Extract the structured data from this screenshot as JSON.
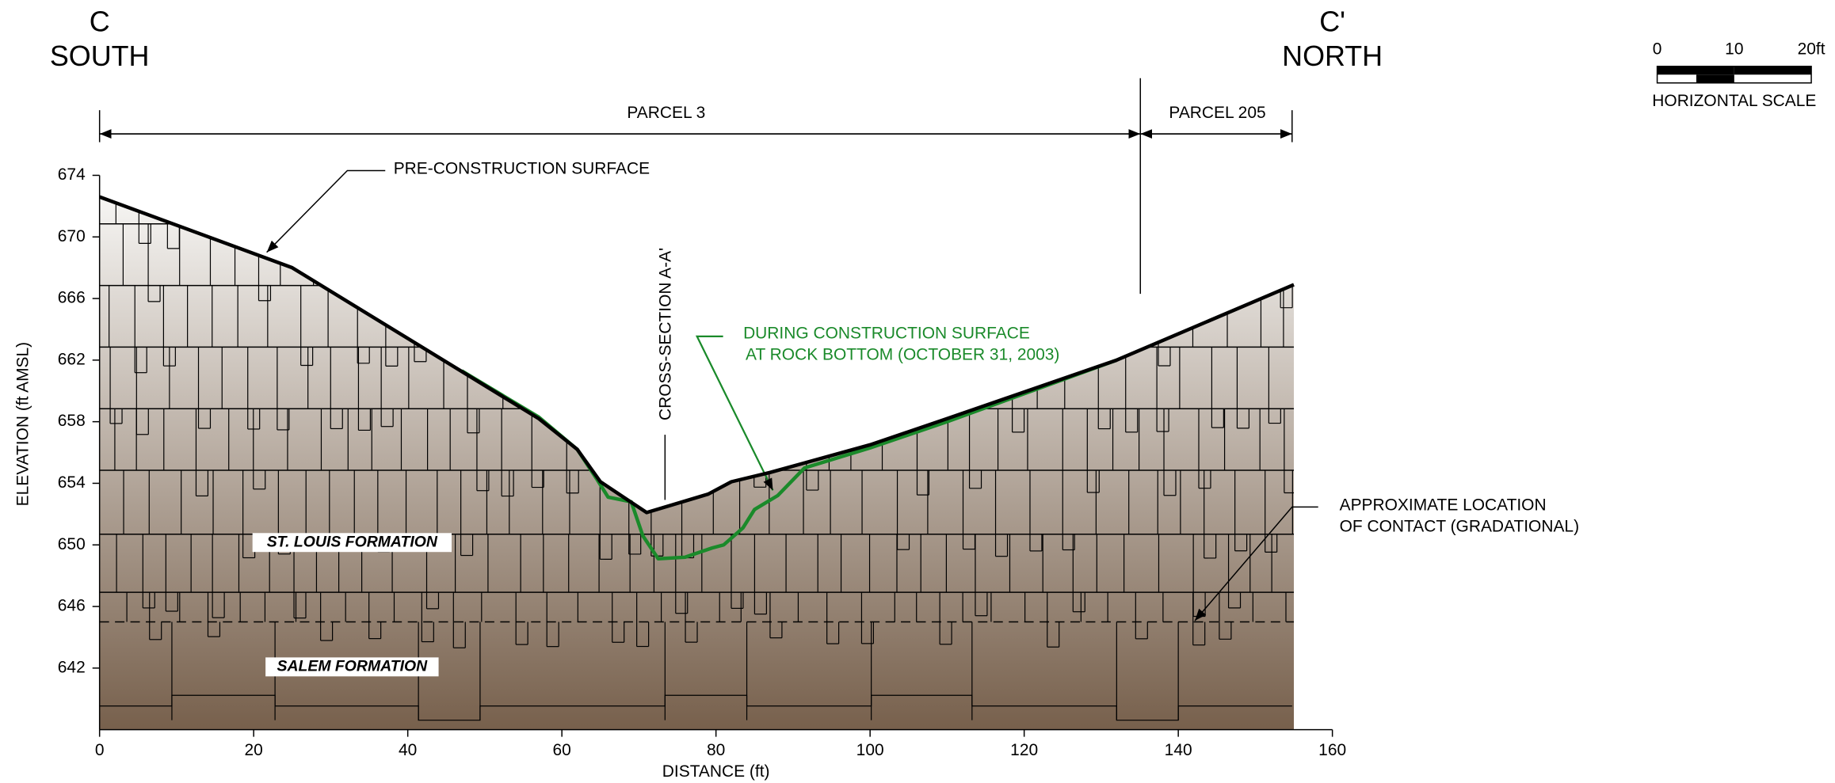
{
  "chart_data": {
    "type": "line",
    "xlabel": "DISTANCE (ft)",
    "ylabel": "ELEVATION (ft AMSL)",
    "xlim": [
      0,
      160
    ],
    "xticks": [
      0,
      20,
      40,
      60,
      80,
      100,
      120,
      140,
      160
    ],
    "ylim": [
      638,
      674
    ],
    "yticks": [
      642,
      646,
      650,
      654,
      658,
      662,
      666,
      670,
      674
    ],
    "series": [
      {
        "name": "PRE-CONSTRUCTION SURFACE",
        "color": "#000000",
        "x": [
          0,
          25,
          57,
          62,
          65,
          71,
          79,
          82,
          87,
          100,
          110,
          132,
          155
        ],
        "values": [
          672.6,
          668,
          658.2,
          656.2,
          654.1,
          652.1,
          653.3,
          654.1,
          654.7,
          656.5,
          658.2,
          662,
          666.9
        ]
      },
      {
        "name": "DURING CONSTRUCTION SURFACE",
        "color": "#1a8a2a",
        "x": [
          47,
          57,
          62,
          64.5,
          66,
          69,
          70.5,
          72.5,
          76,
          79.5,
          81,
          83.5,
          85,
          88,
          91.5,
          100,
          110,
          132
        ],
        "values": [
          661.3,
          658.3,
          656.2,
          654.3,
          653.1,
          652.8,
          650.6,
          649.1,
          649.2,
          649.8,
          650,
          651.1,
          652.3,
          653.2,
          655,
          656.3,
          658,
          662
        ]
      }
    ],
    "annotations": {
      "c": "C",
      "south": "SOUTH",
      "c_prime": "C'",
      "north": "NORTH",
      "parcel_3": "PARCEL 3",
      "parcel_205": "PARCEL 205",
      "cross_section": "CROSS-SECTION A-A'",
      "rock_bottom": "AT ROCK BOTTOM (OCTOBER 31, 2003)",
      "st_louis": "ST. LOUIS FORMATION",
      "salem": "SALEM FORMATION",
      "contact_1": "APPROXIMATE LOCATION",
      "contact_2": "OF CONTACT (GRADATIONAL)"
    },
    "scale_bar": {
      "labels": [
        "0",
        "10",
        "20ft"
      ],
      "title": "HORIZONTAL SCALE"
    }
  }
}
